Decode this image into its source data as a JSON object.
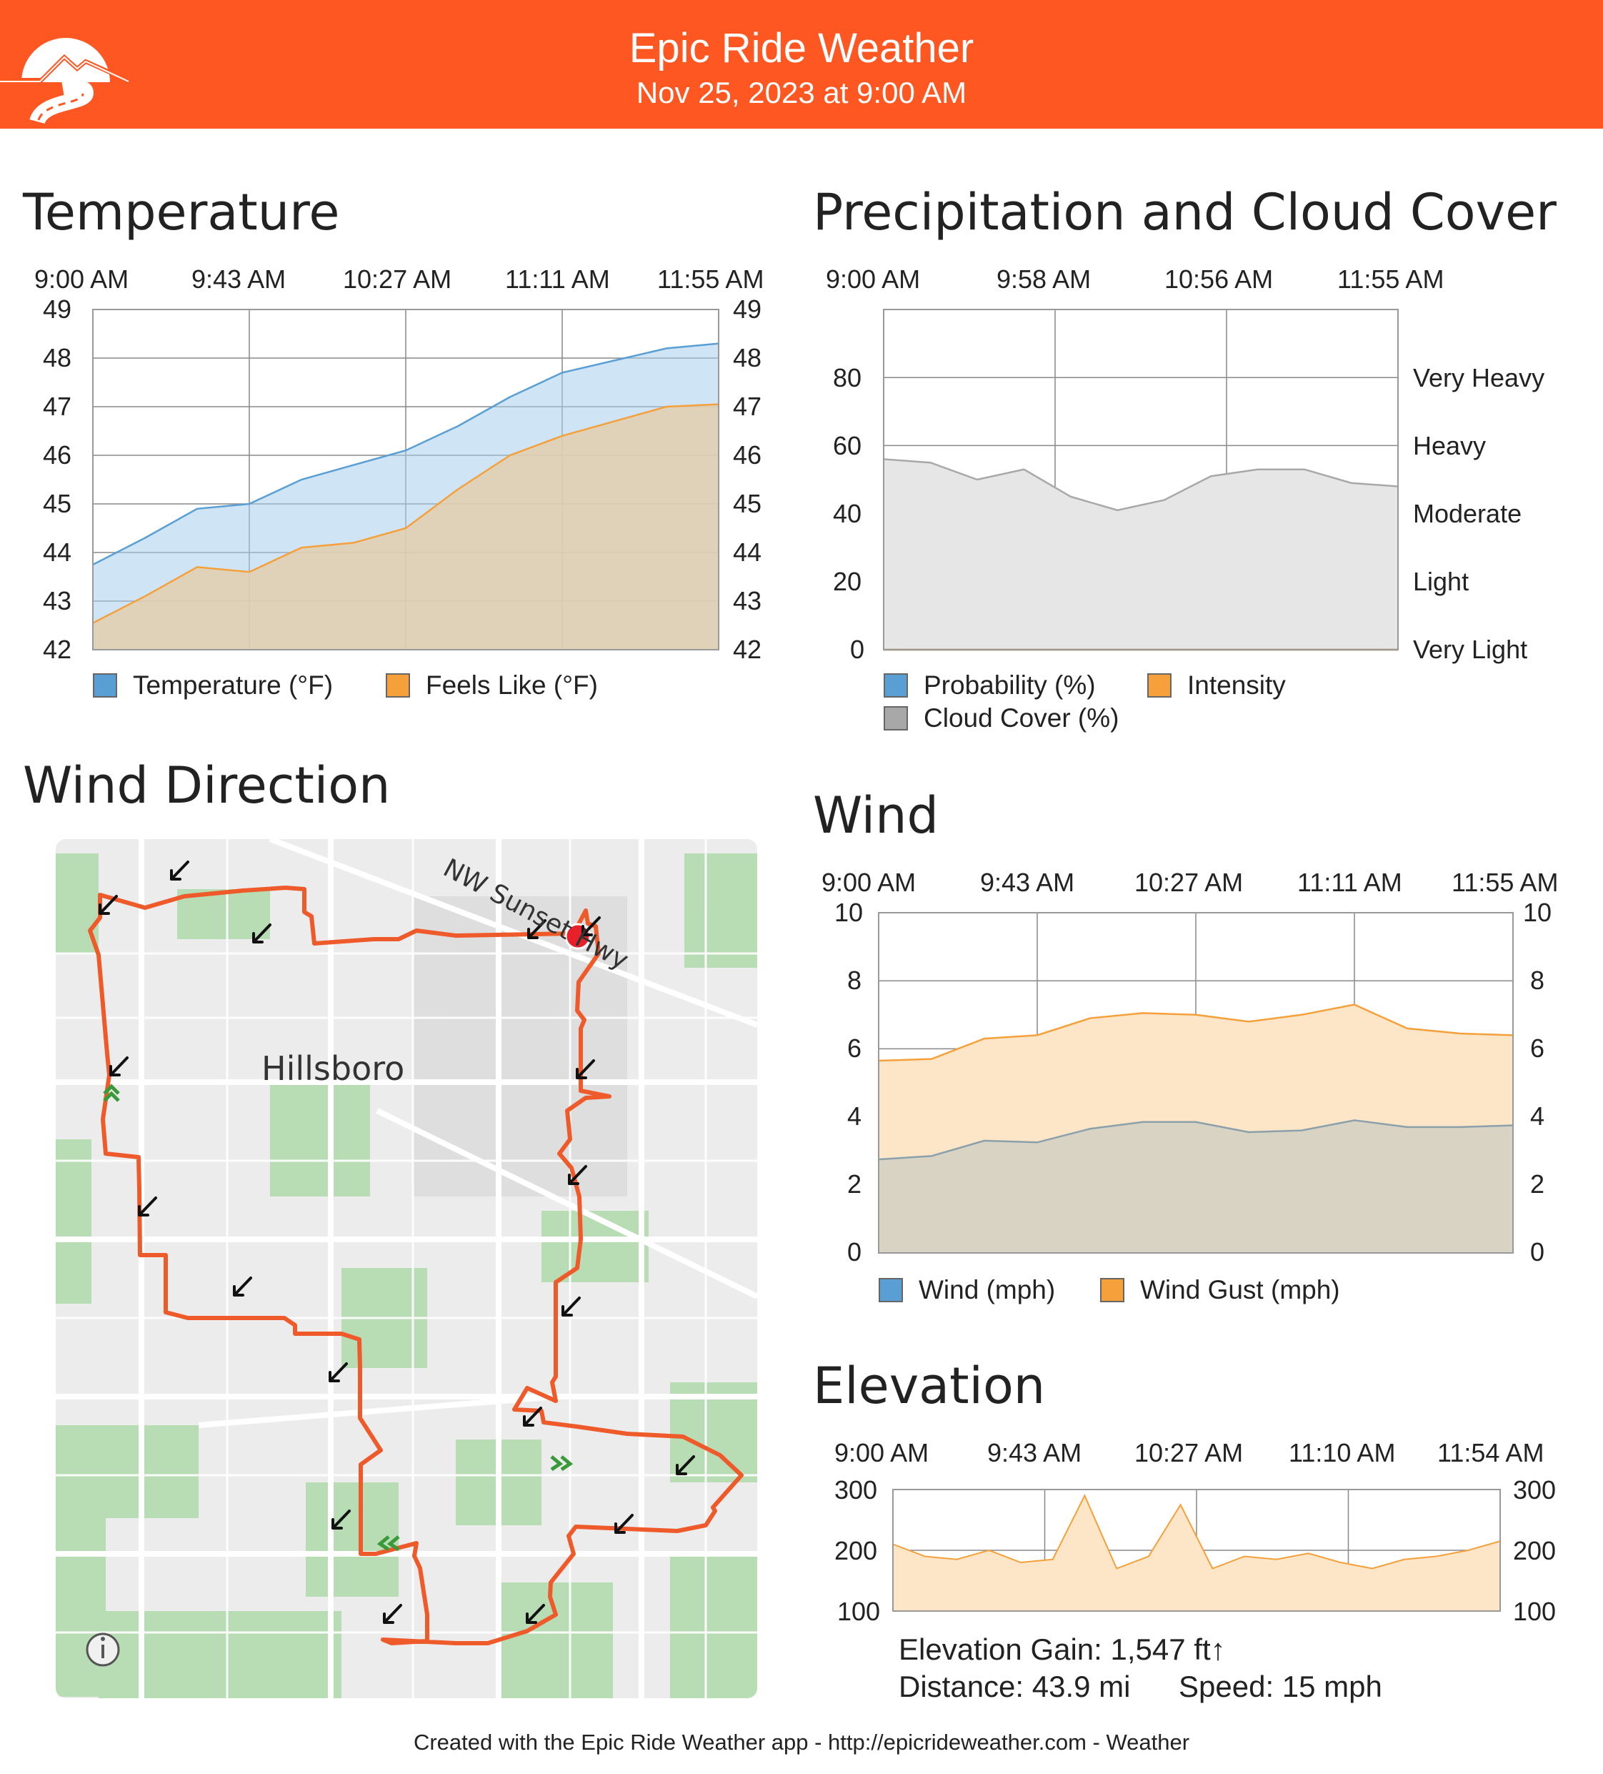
{
  "header": {
    "title": "Epic Ride Weather",
    "date": "Nov 25, 2023 at 9:00 AM",
    "logo_icon": "mountain-road-logo"
  },
  "colors": {
    "brand": "#ff5722",
    "temperature": "#5a9fd4",
    "feels_like": "#f5a03a",
    "cloud": "#a8a8a8",
    "route": "#ee5a2a",
    "wind_arrow": "#111111",
    "start_marker": "#e8202a"
  },
  "temperature": {
    "title": "Temperature",
    "x_ticks": [
      "9:00 AM",
      "9:43 AM",
      "10:27 AM",
      "11:11 AM",
      "11:55 AM"
    ],
    "y_ticks": [
      "49",
      "48",
      "47",
      "46",
      "45",
      "44",
      "43",
      "42"
    ],
    "legend": [
      "Temperature (°F)",
      "Feels Like (°F)"
    ]
  },
  "precip": {
    "title": "Precipitation and Cloud Cover",
    "x_ticks": [
      "9:00 AM",
      "9:58 AM",
      "10:56 AM",
      "11:55 AM"
    ],
    "y_ticks": [
      "80",
      "60",
      "40",
      "20",
      "0"
    ],
    "right_labels": [
      "Very Heavy",
      "Heavy",
      "Moderate",
      "Light",
      "Very Light"
    ],
    "legend": [
      "Probability (%)",
      "Intensity",
      "Cloud Cover (%)"
    ]
  },
  "wind_direction": {
    "title": "Wind Direction",
    "place_label": "Hillsboro",
    "road_label": "NW Sunset Hwy",
    "info_icon": "info-icon"
  },
  "wind": {
    "title": "Wind",
    "x_ticks": [
      "9:00 AM",
      "9:43 AM",
      "10:27 AM",
      "11:11 AM",
      "11:55 AM"
    ],
    "y_ticks": [
      "10",
      "8",
      "6",
      "4",
      "2",
      "0"
    ],
    "legend": [
      "Wind (mph)",
      "Wind Gust (mph)"
    ]
  },
  "elevation": {
    "title": "Elevation",
    "x_ticks": [
      "9:00 AM",
      "9:43 AM",
      "10:27 AM",
      "11:10 AM",
      "11:54 AM"
    ],
    "y_ticks": [
      "300",
      "200",
      "100"
    ],
    "gain": "Elevation Gain: 1,547 ft↑",
    "distance": "Distance: 43.9 mi",
    "speed": "Speed: 15 mph"
  },
  "footer": "Created with the Epic Ride Weather app - http://epicrideweather.com -  Weather",
  "chart_data": [
    {
      "type": "area",
      "title": "Temperature",
      "x": [
        "9:00 AM",
        "9:15 AM",
        "9:30 AM",
        "9:43 AM",
        "10:00 AM",
        "10:15 AM",
        "10:27 AM",
        "10:45 AM",
        "11:00 AM",
        "11:11 AM",
        "11:25 AM",
        "11:40 AM",
        "11:55 AM"
      ],
      "series": [
        {
          "name": "Temperature (°F)",
          "values": [
            43.75,
            44.3,
            44.9,
            45.0,
            45.5,
            45.8,
            46.1,
            46.6,
            47.2,
            47.7,
            47.95,
            48.2,
            48.3
          ]
        },
        {
          "name": "Feels Like (°F)",
          "values": [
            42.55,
            43.1,
            43.7,
            43.6,
            44.1,
            44.2,
            44.5,
            45.3,
            46.0,
            46.4,
            46.7,
            47.0,
            47.05
          ]
        }
      ],
      "ylim": [
        42,
        49
      ]
    },
    {
      "type": "area",
      "title": "Precipitation and Cloud Cover",
      "x": [
        "9:00 AM",
        "9:20 AM",
        "9:40 AM",
        "9:58 AM",
        "10:15 AM",
        "10:30 AM",
        "10:45 AM",
        "10:56 AM",
        "11:10 AM",
        "11:25 AM",
        "11:40 AM",
        "11:55 AM"
      ],
      "series": [
        {
          "name": "Probability (%)",
          "values": [
            0,
            0,
            0,
            0,
            0,
            0,
            0,
            0,
            0,
            0,
            0,
            0
          ]
        },
        {
          "name": "Intensity",
          "values": [
            0,
            0,
            0,
            0,
            0,
            0,
            0,
            0,
            0,
            0,
            0,
            0
          ]
        },
        {
          "name": "Cloud Cover (%)",
          "values": [
            56,
            55,
            50,
            53,
            45,
            41,
            44,
            51,
            53,
            53,
            49,
            48
          ]
        }
      ],
      "ylim": [
        0,
        100
      ]
    },
    {
      "type": "area",
      "title": "Wind",
      "x": [
        "9:00 AM",
        "9:15 AM",
        "9:30 AM",
        "9:43 AM",
        "10:00 AM",
        "10:15 AM",
        "10:27 AM",
        "10:45 AM",
        "11:00 AM",
        "11:11 AM",
        "11:25 AM",
        "11:40 AM",
        "11:55 AM"
      ],
      "series": [
        {
          "name": "Wind (mph)",
          "values": [
            2.75,
            2.85,
            3.3,
            3.25,
            3.65,
            3.85,
            3.85,
            3.55,
            3.6,
            3.9,
            3.7,
            3.7,
            3.75
          ]
        },
        {
          "name": "Wind Gust (mph)",
          "values": [
            5.65,
            5.7,
            6.3,
            6.4,
            6.9,
            7.05,
            7.0,
            6.8,
            7.0,
            7.3,
            6.6,
            6.45,
            6.4
          ]
        }
      ],
      "ylim": [
        0,
        10
      ]
    },
    {
      "type": "area",
      "title": "Elevation",
      "x": [
        "9:00 AM",
        "9:10 AM",
        "9:20 AM",
        "9:30 AM",
        "9:40 AM",
        "9:43 AM",
        "9:50 AM",
        "10:00 AM",
        "10:10 AM",
        "10:20 AM",
        "10:27 AM",
        "10:35 AM",
        "10:45 AM",
        "10:55 AM",
        "11:05 AM",
        "11:10 AM",
        "11:20 AM",
        "11:30 AM",
        "11:40 AM",
        "11:54 AM"
      ],
      "series": [
        {
          "name": "Elevation",
          "values": [
            210,
            190,
            185,
            200,
            180,
            185,
            290,
            170,
            190,
            275,
            170,
            190,
            185,
            195,
            180,
            170,
            185,
            190,
            200,
            215
          ]
        }
      ],
      "ylim": [
        100,
        300
      ]
    }
  ]
}
